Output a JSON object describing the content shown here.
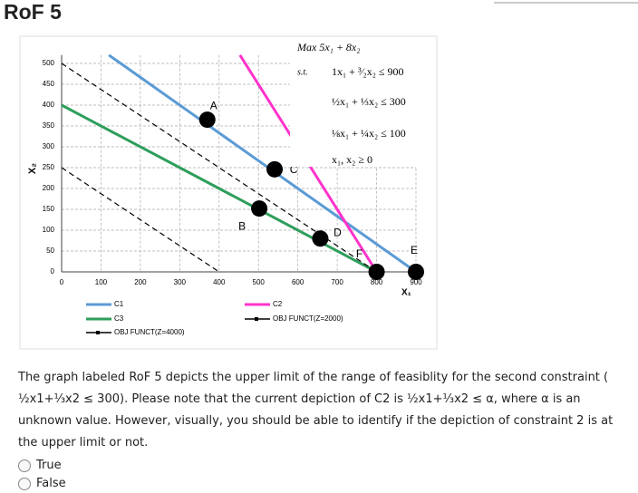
{
  "header": {
    "title": "RoF 5"
  },
  "chart_data": {
    "type": "line",
    "x_label": "X₁",
    "y_label": "X₂",
    "xlim": [
      0,
      900
    ],
    "xticks": [
      0,
      100,
      200,
      300,
      400,
      500,
      600,
      700,
      800,
      900
    ],
    "ylim": [
      0,
      520
    ],
    "yticks": [
      0,
      50,
      100,
      150,
      200,
      250,
      300,
      350,
      400,
      450,
      500
    ],
    "grid": true,
    "series": [
      {
        "name": "C1",
        "color": "#5b9bd5",
        "style": "solid",
        "x": [
          120,
          900
        ],
        "values": [
          520,
          0
        ]
      },
      {
        "name": "C2",
        "color": "#ff33cc",
        "style": "solid",
        "x": [
          453,
          800
        ],
        "values": [
          520,
          0
        ]
      },
      {
        "name": "C3",
        "color": "#2e9e5b",
        "style": "solid",
        "x": [
          0,
          800
        ],
        "values": [
          400,
          0
        ]
      },
      {
        "name": "OBJ FUNCT(Z=4000)",
        "color": "#000000",
        "style": "dashed",
        "x": [
          0,
          800
        ],
        "values": [
          500,
          0
        ]
      },
      {
        "name": "OBJ FUNCT(Z=2000)",
        "color": "#000000",
        "style": "dashed",
        "x": [
          0,
          400
        ],
        "values": [
          250,
          0
        ]
      }
    ],
    "points": [
      {
        "label": "A",
        "x": 370,
        "y": 365
      },
      {
        "label": "B",
        "x": 502,
        "y": 152
      },
      {
        "label": "C",
        "x": 541,
        "y": 246
      },
      {
        "label": "D",
        "x": 657,
        "y": 80
      },
      {
        "label": "F",
        "x": 800,
        "y": 0
      },
      {
        "label": "E",
        "x": 900,
        "y": 0
      }
    ],
    "model": {
      "objective": "Max  5x₁ + 8x₂",
      "st": "s.t.",
      "constraints": [
        "1x₁ + ³⁄₂x₂ ≤ 900",
        "½x₁ + ⅓x₂ ≤ 300",
        "⅛x₁ + ¼x₂ ≤ 100",
        "x₁, x₂ ≥ 0"
      ]
    }
  },
  "question": {
    "text": "The graph labeled RoF 5 depicts the upper limit of the range of feasiblity for the second constraint ( ½x1+⅓x2 ≤ 300). Please note that the current depiction of C2 is ½x1+⅓x2 ≤ α, where α is an unknown value. However, visually, you should be able to identify if the depiction of constraint 2 is at the upper limit or not.",
    "options": [
      "True",
      "False"
    ]
  }
}
